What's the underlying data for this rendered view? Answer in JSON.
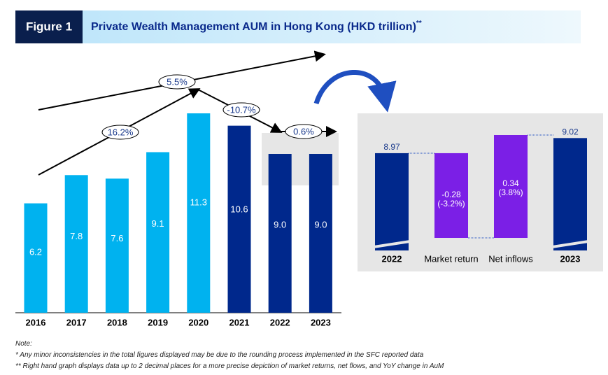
{
  "header": {
    "figure": "Figure 1",
    "title": "Private Wealth Management AUM in Hong Kong (HKD trillion)",
    "title_marker": "**"
  },
  "chart_data": [
    {
      "type": "bar",
      "categories": [
        "2016",
        "2017",
        "2018",
        "2019",
        "2020",
        "2021",
        "2022",
        "2023"
      ],
      "values": [
        6.2,
        7.8,
        7.6,
        9.1,
        11.3,
        10.6,
        9.0,
        9.0
      ],
      "value_labels": [
        "6.2",
        "7.8",
        "7.6",
        "9.1",
        "11.3",
        "10.6",
        "9.0",
        "9.0"
      ],
      "colors": [
        "#00b2ef",
        "#00b2ef",
        "#00b2ef",
        "#00b2ef",
        "#00b2ef",
        "#00288c",
        "#00288c",
        "#00288c"
      ],
      "annotations": [
        "16.2%",
        "5.5%",
        "-10.7%",
        "0.6%"
      ]
    },
    {
      "type": "waterfall",
      "categories": [
        "2022",
        "Market return",
        "Net inflows",
        "2023"
      ],
      "values": [
        8.97,
        -0.28,
        0.34,
        9.02
      ],
      "change_labels": [
        null,
        "(-3.2%)",
        "(3.8%)",
        null
      ],
      "colors": [
        "#00288c",
        "#7b1fe6",
        "#7b1fe6",
        "#00288c"
      ]
    }
  ],
  "notes": [
    "Note:",
    "* Any minor inconsistencies in the total figures displayed may be due to the rounding process implemented in the SFC reported data",
    "** Right hand graph displays data up to 2 decimal places for a more precise depiction of market returns, net flows, and YoY change in AuM"
  ]
}
